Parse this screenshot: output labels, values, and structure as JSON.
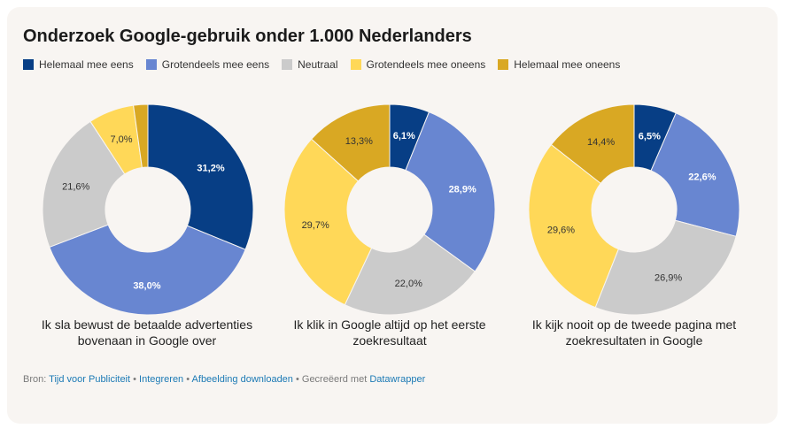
{
  "title": "Onderzoek Google-gebruik onder 1.000 Nederlanders",
  "legend": [
    {
      "label": "Helemaal mee eens",
      "color": "#073e85"
    },
    {
      "label": "Grotendeels mee eens",
      "color": "#6886d1"
    },
    {
      "label": "Neutraal",
      "color": "#cbcbcb"
    },
    {
      "label": "Grotendeels mee oneens",
      "color": "#ffd858"
    },
    {
      "label": "Helemaal mee oneens",
      "color": "#d9a823"
    }
  ],
  "chart_data": [
    {
      "type": "pie",
      "title": "Ik sla bewust de betaalde advertenties bovenaan in Google over",
      "categories": [
        "Helemaal mee eens",
        "Grotendeels mee eens",
        "Neutraal",
        "Grotendeels mee oneens",
        "Helemaal mee oneens"
      ],
      "values": [
        31.2,
        38.0,
        21.6,
        7.0,
        2.2
      ],
      "labels": [
        "31,2%",
        "38,0%",
        "21,6%",
        "7,0%",
        ""
      ]
    },
    {
      "type": "pie",
      "title": "Ik klik in Google altijd op het eerste zoekresultaat",
      "categories": [
        "Helemaal mee eens",
        "Grotendeels mee eens",
        "Neutraal",
        "Grotendeels mee oneens",
        "Helemaal mee oneens"
      ],
      "values": [
        6.1,
        28.9,
        22.0,
        29.7,
        13.3
      ],
      "labels": [
        "6,1%",
        "28,9%",
        "22,0%",
        "29,7%",
        "13,3%"
      ]
    },
    {
      "type": "pie",
      "title": "Ik kijk nooit op de tweede pagina met zoekresultaten in Google",
      "categories": [
        "Helemaal mee eens",
        "Grotendeels mee eens",
        "Neutraal",
        "Grotendeels mee oneens",
        "Helemaal mee oneens"
      ],
      "values": [
        6.5,
        22.6,
        26.9,
        29.6,
        14.4
      ],
      "labels": [
        "6,5%",
        "22,6%",
        "26,9%",
        "29,6%",
        "14,4%"
      ]
    }
  ],
  "footer": {
    "prefix": "Bron:",
    "source_link": "Tijd voor Publiciteit",
    "sep1": " • ",
    "embed_link": "Integreren",
    "sep2": " • ",
    "download_link": "Afbeelding downloaden",
    "created_with": " • Gecreëerd met ",
    "tool_link": "Datawrapper"
  }
}
